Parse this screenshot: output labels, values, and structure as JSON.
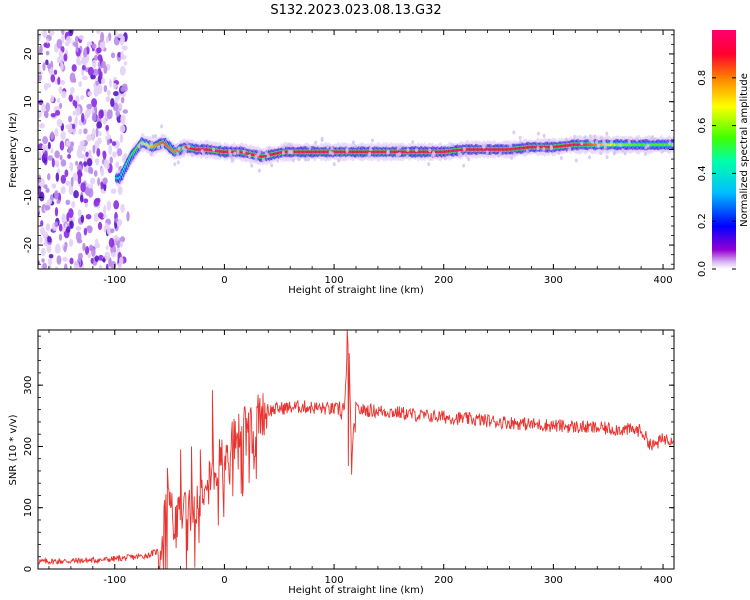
{
  "figure_title": "S132.2023.023.08.13.G32",
  "chart_data": [
    {
      "type": "heatmap",
      "title": "",
      "xlabel": "Height of straight line (km)",
      "ylabel": "Frequency (Hz)",
      "xlim": [
        -170,
        410
      ],
      "ylim": [
        -25,
        25
      ],
      "x_ticks": [
        -100,
        0,
        100,
        200,
        300,
        400
      ],
      "y_ticks": [
        -20,
        -10,
        0,
        10,
        20
      ],
      "grid": false,
      "colorbar": {
        "label": "Normalized spectral amplitude",
        "range": [
          0,
          1
        ],
        "ticks": [
          "0.0",
          "0.2",
          "0.4",
          "0.6",
          "0.8"
        ],
        "colormap": "rainbow",
        "colors": [
          "#ffffff",
          "#d8b4f0",
          "#8a2be2",
          "#0000ff",
          "#00bfff",
          "#00ff80",
          "#7fff00",
          "#ffff00",
          "#ff8000",
          "#ff0040"
        ]
      },
      "noise_region": {
        "x_from": -170,
        "x_to": -90,
        "frequency_range": [
          -25,
          25
        ],
        "color": "#8a2be2"
      },
      "ridge": {
        "x": [
          -95,
          -85,
          -75,
          -65,
          -55,
          -45,
          -35,
          -25,
          -15,
          0,
          15,
          25,
          35,
          45,
          55,
          65,
          80,
          100,
          120,
          140,
          160,
          180,
          200,
          220,
          240,
          260,
          280,
          300,
          320,
          340,
          360,
          380,
          400,
          410
        ],
        "frequency": [
          -6,
          -1.5,
          1.5,
          0.5,
          1.5,
          -0.5,
          0.5,
          0,
          0,
          -0.5,
          -0.5,
          -1,
          -1.5,
          -1,
          -0.5,
          -0.5,
          -0.5,
          -0.5,
          -0.5,
          -0.5,
          -0.5,
          -0.5,
          -0.5,
          0,
          0,
          0,
          0.5,
          0.5,
          1,
          1,
          1,
          1,
          1,
          1
        ],
        "amplitude": [
          0.4,
          0.5,
          0.6,
          0.75,
          0.85,
          0.8,
          0.85,
          0.95,
          1.0,
          0.95,
          0.95,
          0.9,
          0.95,
          0.9,
          0.95,
          0.95,
          0.95,
          0.95,
          0.9,
          0.95,
          0.95,
          0.95,
          0.95,
          0.95,
          0.95,
          0.95,
          0.9,
          0.95,
          0.95,
          0.8,
          0.6,
          0.55,
          0.55,
          0.55
        ]
      }
    },
    {
      "type": "line",
      "title": "",
      "xlabel": "Height of straight line (km)",
      "ylabel": "SNR (10 * v/v)",
      "xlim": [
        -170,
        410
      ],
      "ylim": [
        0,
        390
      ],
      "x_ticks": [
        -100,
        0,
        100,
        200,
        300,
        400
      ],
      "y_ticks": [
        0,
        100,
        200,
        300
      ],
      "grid": false,
      "series": [
        {
          "color": "#e8332e",
          "x": [
            -170,
            -140,
            -110,
            -90,
            -70,
            -60,
            -55,
            -50,
            -45,
            -40,
            -30,
            -20,
            -15,
            -10,
            -5,
            0,
            10,
            20,
            30,
            40,
            50,
            70,
            90,
            105,
            110,
            113,
            116,
            120,
            140,
            160,
            180,
            200,
            240,
            280,
            320,
            360,
            380,
            390,
            400,
            410
          ],
          "y": [
            12,
            13,
            15,
            18,
            22,
            30,
            70,
            120,
            60,
            110,
            95,
            130,
            170,
            150,
            175,
            190,
            215,
            235,
            250,
            258,
            262,
            265,
            262,
            260,
            262,
            390,
            170,
            260,
            258,
            255,
            250,
            248,
            242,
            236,
            232,
            228,
            226,
            200,
            212,
            214
          ],
          "spikes": [
            {
              "x": -52,
              "y": 165
            },
            {
              "x": -40,
              "y": 195
            },
            {
              "x": -30,
              "y": 200
            },
            {
              "x": -22,
              "y": 195
            },
            {
              "x": -11,
              "y": 292
            },
            {
              "x": 112,
              "y": 390
            },
            {
              "x": 113,
              "y": 168
            }
          ]
        }
      ]
    }
  ]
}
